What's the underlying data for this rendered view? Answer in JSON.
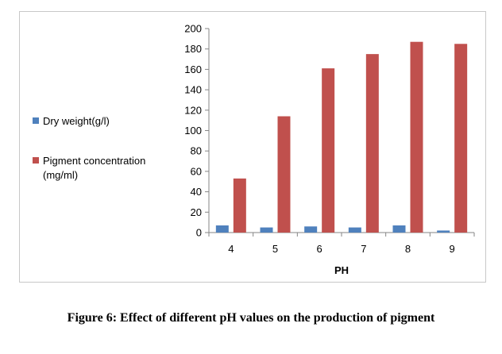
{
  "caption": "Figure 6: Effect of different pH values on the production of pigment",
  "chart_data": {
    "type": "bar",
    "title": "",
    "xlabel": "PH",
    "ylabel": "",
    "categories": [
      "4",
      "5",
      "6",
      "7",
      "8",
      "9"
    ],
    "ylim": [
      0,
      200
    ],
    "yticks": [
      0,
      20,
      40,
      60,
      80,
      100,
      120,
      140,
      160,
      180,
      200
    ],
    "grid": false,
    "legend_position": "left",
    "series": [
      {
        "name": "Dry weight(g/l)",
        "color": "#4f81bd",
        "values": [
          7,
          5,
          6,
          5,
          7,
          2
        ]
      },
      {
        "name": "Pigment concentration (mg/ml)",
        "legend_lines": [
          "Pigment concentration",
          "(mg/ml)"
        ],
        "color": "#c0504d",
        "values": [
          53,
          114,
          161,
          175,
          187,
          185
        ]
      }
    ]
  }
}
